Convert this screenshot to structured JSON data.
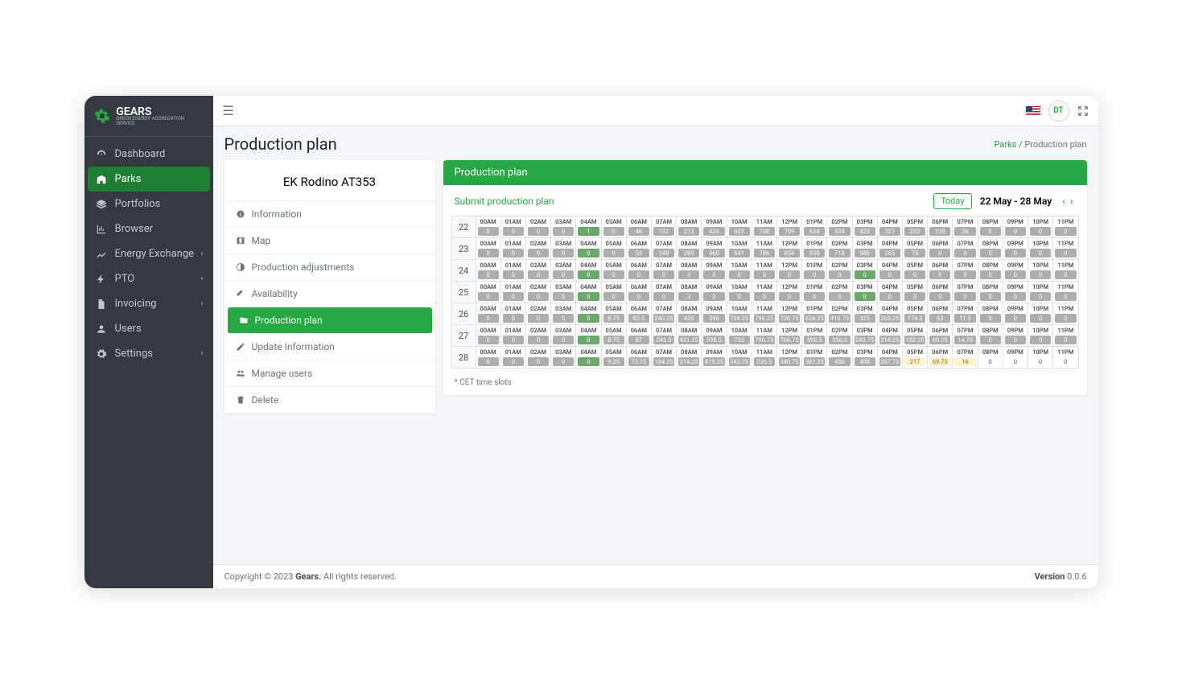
{
  "brand": {
    "name": "GEARS",
    "tagline": "GREEN ENERGY AGGREGATION SERVICE"
  },
  "sidebar": {
    "items": [
      {
        "label": "Dashboard",
        "icon": "dashboard",
        "hasSub": false
      },
      {
        "label": "Parks",
        "icon": "building",
        "hasSub": false,
        "active": true
      },
      {
        "label": "Portfolios",
        "icon": "layers",
        "hasSub": false
      },
      {
        "label": "Browser",
        "icon": "chart",
        "hasSub": false
      },
      {
        "label": "Energy Exchange",
        "icon": "line",
        "hasSub": true
      },
      {
        "label": "PTO",
        "icon": "bolt",
        "hasSub": true
      },
      {
        "label": "Invoicing",
        "icon": "file",
        "hasSub": true
      },
      {
        "label": "Users",
        "icon": "user",
        "hasSub": false
      },
      {
        "label": "Settings",
        "icon": "cog",
        "hasSub": true
      }
    ]
  },
  "topbar": {
    "avatar": "DT"
  },
  "page": {
    "title": "Production plan",
    "breadcrumb_parent": "Parks",
    "breadcrumb_sep": "/",
    "breadcrumb_current": "Production plan"
  },
  "park": {
    "name": "EK Rodino AT353",
    "tabs": [
      {
        "label": "Information",
        "icon": "info"
      },
      {
        "label": "Map",
        "icon": "map"
      },
      {
        "label": "Production adjustments",
        "icon": "adjust"
      },
      {
        "label": "Availability",
        "icon": "tools"
      },
      {
        "label": "Production plan",
        "icon": "folder",
        "active": true
      },
      {
        "label": "Update Information",
        "icon": "edit"
      },
      {
        "label": "Manage users",
        "icon": "users"
      },
      {
        "label": "Delete",
        "icon": "trash"
      }
    ]
  },
  "plan": {
    "panel_title": "Production plan",
    "submit_label": "Submit production plan",
    "today_label": "Today",
    "range": "22 May - 28 May",
    "footnote": "* CET time slots",
    "hours": [
      "00AM",
      "01AM",
      "02AM",
      "03AM",
      "04AM",
      "05AM",
      "06AM",
      "07AM",
      "08AM",
      "09AM",
      "10AM",
      "11AM",
      "12PM",
      "01PM",
      "02PM",
      "03PM",
      "04PM",
      "05PM",
      "06PM",
      "07PM",
      "08PM",
      "09PM",
      "10PM",
      "11PM"
    ],
    "rows": [
      {
        "day": "22",
        "cells": [
          {
            "v": "0",
            "c": "gray"
          },
          {
            "v": "0",
            "c": "gray"
          },
          {
            "v": "0",
            "c": "gray"
          },
          {
            "v": "0",
            "c": "gray"
          },
          {
            "v": "1",
            "c": "green"
          },
          {
            "v": "0",
            "c": "gray"
          },
          {
            "v": "46",
            "c": "gray"
          },
          {
            "v": "132",
            "c": "gray"
          },
          {
            "v": "213",
            "c": "gray"
          },
          {
            "v": "426",
            "c": "gray"
          },
          {
            "v": "603",
            "c": "gray"
          },
          {
            "v": "708",
            "c": "gray"
          },
          {
            "v": "709",
            "c": "gray"
          },
          {
            "v": "634",
            "c": "gray"
          },
          {
            "v": "524",
            "c": "gray"
          },
          {
            "v": "423",
            "c": "gray"
          },
          {
            "v": "327",
            "c": "gray"
          },
          {
            "v": "232",
            "c": "gray"
          },
          {
            "v": "138",
            "c": "gray"
          },
          {
            "v": "36",
            "c": "gray"
          },
          {
            "v": "0",
            "c": "gray"
          },
          {
            "v": "0",
            "c": "gray"
          },
          {
            "v": "0",
            "c": "gray"
          },
          {
            "v": "0",
            "c": "gray"
          }
        ]
      },
      {
        "day": "23",
        "cells": [
          {
            "v": "0",
            "c": "gray"
          },
          {
            "v": "0",
            "c": "gray"
          },
          {
            "v": "0",
            "c": "gray"
          },
          {
            "v": "0",
            "c": "gray"
          },
          {
            "v": "0",
            "c": "green"
          },
          {
            "v": "0",
            "c": "gray"
          },
          {
            "v": "53",
            "c": "gray"
          },
          {
            "v": "148",
            "c": "gray"
          },
          {
            "v": "283",
            "c": "gray"
          },
          {
            "v": "460",
            "c": "gray"
          },
          {
            "v": "641",
            "c": "gray"
          },
          {
            "v": "786",
            "c": "gray"
          },
          {
            "v": "856",
            "c": "gray"
          },
          {
            "v": "838",
            "c": "gray"
          },
          {
            "v": "718",
            "c": "gray"
          },
          {
            "v": "586",
            "c": "gray"
          },
          {
            "v": "265",
            "c": "gray"
          },
          {
            "v": "73",
            "c": "gray"
          },
          {
            "v": "0",
            "c": "gray"
          },
          {
            "v": "0",
            "c": "gray"
          },
          {
            "v": "0",
            "c": "gray"
          },
          {
            "v": "0",
            "c": "gray"
          },
          {
            "v": "0",
            "c": "gray"
          },
          {
            "v": "0",
            "c": "gray"
          }
        ]
      },
      {
        "day": "24",
        "cells": [
          {
            "v": "0",
            "c": "gray"
          },
          {
            "v": "0",
            "c": "gray"
          },
          {
            "v": "0",
            "c": "gray"
          },
          {
            "v": "0",
            "c": "gray"
          },
          {
            "v": "0",
            "c": "green"
          },
          {
            "v": "0",
            "c": "gray"
          },
          {
            "v": "0",
            "c": "gray"
          },
          {
            "v": "0",
            "c": "gray"
          },
          {
            "v": "3",
            "c": "gray"
          },
          {
            "v": "0",
            "c": "gray"
          },
          {
            "v": "0",
            "c": "gray"
          },
          {
            "v": "0",
            "c": "gray"
          },
          {
            "v": "0",
            "c": "gray"
          },
          {
            "v": "0",
            "c": "gray"
          },
          {
            "v": "0",
            "c": "gray"
          },
          {
            "v": "0",
            "c": "green"
          },
          {
            "v": "0",
            "c": "gray"
          },
          {
            "v": "0",
            "c": "gray"
          },
          {
            "v": "0",
            "c": "gray"
          },
          {
            "v": "0",
            "c": "gray"
          },
          {
            "v": "0",
            "c": "gray"
          },
          {
            "v": "0",
            "c": "gray"
          },
          {
            "v": "0",
            "c": "gray"
          },
          {
            "v": "0",
            "c": "gray"
          }
        ]
      },
      {
        "day": "25",
        "cells": [
          {
            "v": "0",
            "c": "gray"
          },
          {
            "v": "0",
            "c": "gray"
          },
          {
            "v": "0",
            "c": "gray"
          },
          {
            "v": "0",
            "c": "gray"
          },
          {
            "v": "0",
            "c": "green"
          },
          {
            "v": "0",
            "c": "gray"
          },
          {
            "v": "0",
            "c": "gray"
          },
          {
            "v": "0",
            "c": "gray"
          },
          {
            "v": "3",
            "c": "gray"
          },
          {
            "v": "0",
            "c": "gray"
          },
          {
            "v": "0",
            "c": "gray"
          },
          {
            "v": "0",
            "c": "gray"
          },
          {
            "v": "0",
            "c": "gray"
          },
          {
            "v": "0",
            "c": "gray"
          },
          {
            "v": "0",
            "c": "gray"
          },
          {
            "v": "0",
            "c": "green"
          },
          {
            "v": "0",
            "c": "gray"
          },
          {
            "v": "0",
            "c": "gray"
          },
          {
            "v": "0",
            "c": "gray"
          },
          {
            "v": "0",
            "c": "gray"
          },
          {
            "v": "0",
            "c": "gray"
          },
          {
            "v": "0",
            "c": "gray"
          },
          {
            "v": "0",
            "c": "gray"
          },
          {
            "v": "0",
            "c": "gray"
          }
        ]
      },
      {
        "day": "26",
        "cells": [
          {
            "v": "0",
            "c": "gray"
          },
          {
            "v": "0",
            "c": "gray"
          },
          {
            "v": "0",
            "c": "gray"
          },
          {
            "v": "0",
            "c": "gray"
          },
          {
            "v": "0",
            "c": "green"
          },
          {
            "v": "8.75",
            "c": "gray"
          },
          {
            "v": "83.5",
            "c": "gray"
          },
          {
            "v": "240.25",
            "c": "gray"
          },
          {
            "v": "435",
            "c": "gray"
          },
          {
            "v": "596",
            "c": "gray"
          },
          {
            "v": "734.25",
            "c": "gray"
          },
          {
            "v": "796.25",
            "c": "gray"
          },
          {
            "v": "730.75",
            "c": "gray"
          },
          {
            "v": "624.25",
            "c": "gray"
          },
          {
            "v": "410.75",
            "c": "gray"
          },
          {
            "v": "325",
            "c": "gray"
          },
          {
            "v": "263.25",
            "c": "gray"
          },
          {
            "v": "174.3",
            "c": "gray"
          },
          {
            "v": "63",
            "c": "gray"
          },
          {
            "v": "11.5",
            "c": "gray"
          },
          {
            "v": "0",
            "c": "gray"
          },
          {
            "v": "0",
            "c": "gray"
          },
          {
            "v": "0",
            "c": "gray"
          },
          {
            "v": "0",
            "c": "gray"
          }
        ]
      },
      {
        "day": "27",
        "cells": [
          {
            "v": "0",
            "c": "gray"
          },
          {
            "v": "0",
            "c": "gray"
          },
          {
            "v": "0",
            "c": "gray"
          },
          {
            "v": "0",
            "c": "gray"
          },
          {
            "v": "0",
            "c": "green"
          },
          {
            "v": "8.75",
            "c": "gray"
          },
          {
            "v": "87",
            "c": "gray"
          },
          {
            "v": "245.5",
            "c": "gray"
          },
          {
            "v": "421.25",
            "c": "gray"
          },
          {
            "v": "598.5",
            "c": "gray"
          },
          {
            "v": "733",
            "c": "gray"
          },
          {
            "v": "796.75",
            "c": "gray"
          },
          {
            "v": "768.75",
            "c": "gray"
          },
          {
            "v": "595.5",
            "c": "gray"
          },
          {
            "v": "356.5",
            "c": "gray"
          },
          {
            "v": "243.75",
            "c": "gray"
          },
          {
            "v": "214.25",
            "c": "gray"
          },
          {
            "v": "152.25",
            "c": "gray"
          },
          {
            "v": "69.25",
            "c": "gray"
          },
          {
            "v": "14.75",
            "c": "gray"
          },
          {
            "v": "0",
            "c": "gray"
          },
          {
            "v": "0",
            "c": "gray"
          },
          {
            "v": "0",
            "c": "gray"
          },
          {
            "v": "0",
            "c": "gray"
          }
        ]
      },
      {
        "day": "28",
        "cells": [
          {
            "v": "0",
            "c": "gray"
          },
          {
            "v": "0",
            "c": "gray"
          },
          {
            "v": "0",
            "c": "gray"
          },
          {
            "v": "0",
            "c": "gray"
          },
          {
            "v": "0",
            "c": "green"
          },
          {
            "v": "9.25",
            "c": "gray"
          },
          {
            "v": "73.75",
            "c": "gray"
          },
          {
            "v": "184.25",
            "c": "gray"
          },
          {
            "v": "314.25",
            "c": "gray"
          },
          {
            "v": "419.25",
            "c": "gray"
          },
          {
            "v": "343.75",
            "c": "gray"
          },
          {
            "v": "236.5",
            "c": "gray"
          },
          {
            "v": "340.75",
            "c": "gray"
          },
          {
            "v": "387.25",
            "c": "gray"
          },
          {
            "v": "456",
            "c": "gray"
          },
          {
            "v": "408",
            "c": "gray"
          },
          {
            "v": "357.75",
            "c": "gray"
          },
          {
            "v": "217",
            "c": "yellow"
          },
          {
            "v": "69.75",
            "c": "yellow"
          },
          {
            "v": "16",
            "c": "yellow"
          },
          {
            "v": "0",
            "c": "none"
          },
          {
            "v": "0",
            "c": "none"
          },
          {
            "v": "0",
            "c": "none"
          },
          {
            "v": "0",
            "c": "none"
          }
        ]
      }
    ]
  },
  "footer": {
    "copyright_prefix": "Copyright © 2023 ",
    "brand": "Gears.",
    "copyright_suffix": " All rights reserved.",
    "version_label": "Version",
    "version": " 0.0.6"
  },
  "colors": {
    "accent": "#28a745",
    "sidebar_bg": "#343a40",
    "body_bg": "#f4f6f9"
  }
}
